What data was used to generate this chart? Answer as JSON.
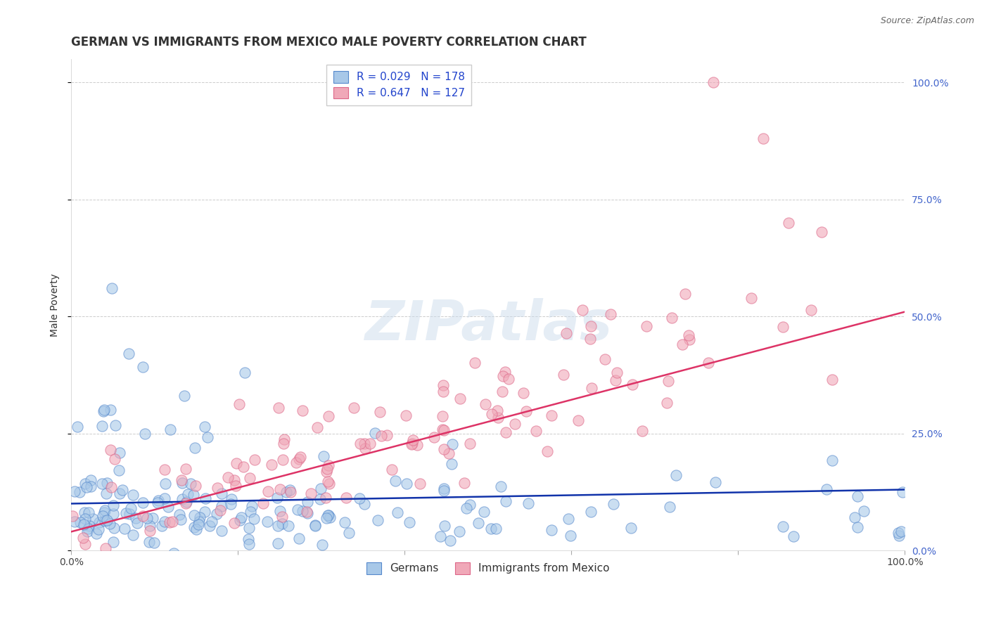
{
  "title": "GERMAN VS IMMIGRANTS FROM MEXICO MALE POVERTY CORRELATION CHART",
  "source": "Source: ZipAtlas.com",
  "ylabel": "Male Poverty",
  "xlim": [
    0.0,
    1.0
  ],
  "ylim": [
    0.0,
    1.05
  ],
  "xtick_positions": [
    0.0,
    0.2,
    0.4,
    0.6,
    0.8,
    1.0
  ],
  "xtick_labels": [
    "0.0%",
    "",
    "",
    "",
    "",
    "100.0%"
  ],
  "ytick_positions": [
    0.0,
    0.25,
    0.5,
    0.75,
    1.0
  ],
  "ytick_labels": [
    "0.0%",
    "25.0%",
    "50.0%",
    "75.0%",
    "100.0%"
  ],
  "german_color": "#a8c8e8",
  "german_edge_color": "#5588cc",
  "mexico_color": "#f0a8b8",
  "mexico_edge_color": "#dd6688",
  "line_german_color": "#1133aa",
  "line_mexico_color": "#dd3366",
  "R_german": 0.029,
  "N_german": 178,
  "R_mexico": 0.647,
  "N_mexico": 127,
  "legend_label_german": "Germans",
  "legend_label_mexico": "Immigrants from Mexico",
  "title_fontsize": 12,
  "label_fontsize": 10,
  "tick_fontsize": 10,
  "legend_fontsize": 11,
  "watermark_text": "ZIPatlas",
  "background_color": "#ffffff",
  "grid_color": "#cccccc"
}
